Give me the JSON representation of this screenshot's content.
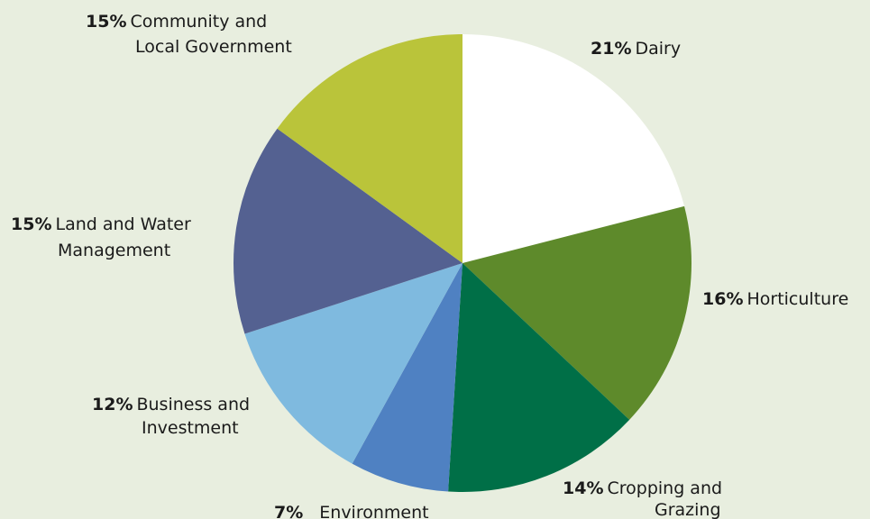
{
  "chart_data": {
    "type": "pie",
    "start_angle_deg": 0,
    "direction": "clockwise",
    "legend": "none",
    "slices": [
      {
        "label": "Dairy",
        "value": 21,
        "pct_text": "21%",
        "label_lines": [
          "Dairy"
        ],
        "color": "#ffffff"
      },
      {
        "label": "Horticulture",
        "value": 16,
        "pct_text": "16%",
        "label_lines": [
          "Horticulture"
        ],
        "color": "#5e8a2b"
      },
      {
        "label": "Cropping and Grazing",
        "value": 14,
        "pct_text": "14%",
        "label_lines": [
          "Cropping and",
          "Grazing"
        ],
        "color": "#006f47"
      },
      {
        "label": "Environment",
        "value": 7,
        "pct_text": "7%",
        "label_lines": [
          "Environment"
        ],
        "color": "#4f81c2"
      },
      {
        "label": "Business and Investment",
        "value": 12,
        "pct_text": "12%",
        "label_lines": [
          "Business and",
          "Investment"
        ],
        "color": "#7fbadf"
      },
      {
        "label": "Land and Water Management",
        "value": 15,
        "pct_text": "15%",
        "label_lines": [
          "Land and Water",
          "Management"
        ],
        "color": "#546191"
      },
      {
        "label": "Community and Local Government",
        "value": 15,
        "pct_text": "15%",
        "label_lines": [
          "Community and",
          "Local Government"
        ],
        "color": "#bac43a"
      }
    ]
  }
}
